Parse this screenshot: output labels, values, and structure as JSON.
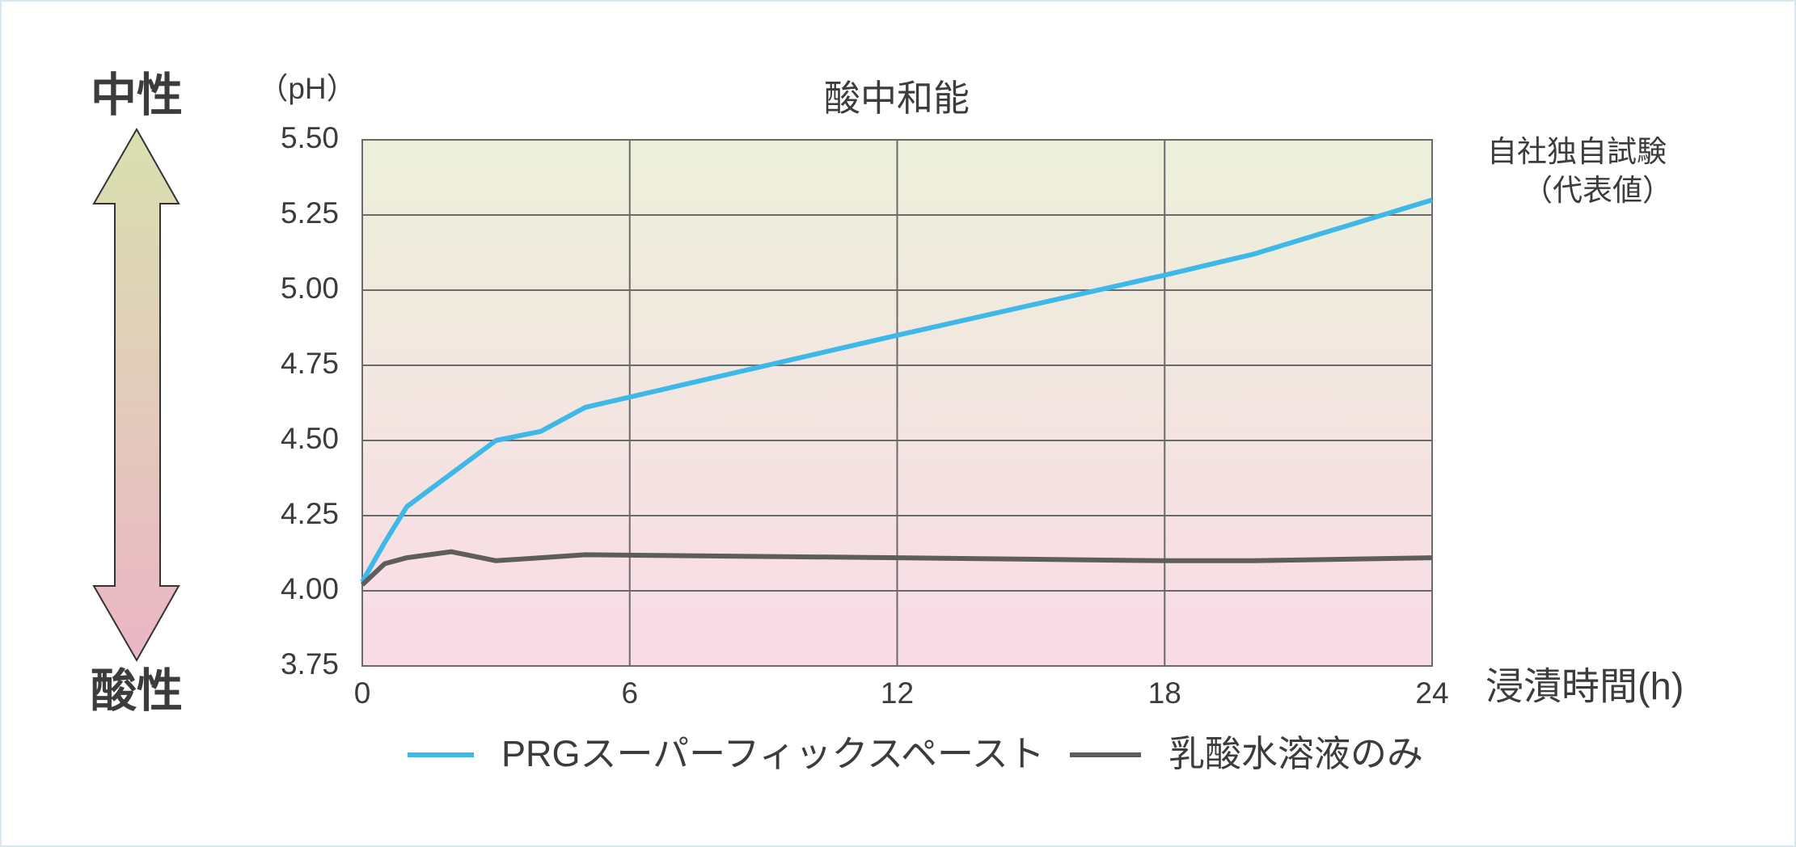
{
  "chart_data": {
    "type": "line",
    "title": "酸中和能",
    "y_unit_label": "（pH）",
    "x_label": "浸漬時間(h)",
    "note_line1": "自社独自試験",
    "note_line2": "（代表値）",
    "top_side_label": "中性",
    "bottom_side_label": "酸性",
    "x": [
      0,
      0.5,
      1,
      2,
      3,
      4,
      5,
      12,
      18,
      20,
      24
    ],
    "series": [
      {
        "name": "PRGスーパーフィックスペースト",
        "color": "#3db8e8",
        "values": [
          4.03,
          4.16,
          4.28,
          4.39,
          4.5,
          4.53,
          4.61,
          4.85,
          5.05,
          5.12,
          5.3
        ]
      },
      {
        "name": "乳酸水溶液のみ",
        "color": "#5d5d5d",
        "values": [
          4.02,
          4.09,
          4.11,
          4.13,
          4.1,
          4.11,
          4.12,
          4.11,
          4.1,
          4.1,
          4.11
        ]
      }
    ],
    "xlim": [
      0,
      24
    ],
    "xticks": [
      0,
      6,
      12,
      18,
      24
    ],
    "ylim": [
      3.75,
      5.5
    ],
    "yticks": [
      {
        "value": 3.75,
        "label": "3.75"
      },
      {
        "value": 4,
        "label": "4.00"
      },
      {
        "value": 4.25,
        "label": "4.25"
      },
      {
        "value": 4.5,
        "label": "4.50"
      },
      {
        "value": 4.75,
        "label": "4.75"
      },
      {
        "value": 5,
        "label": "5.00"
      },
      {
        "value": 5.25,
        "label": "5.25"
      },
      {
        "value": 5.5,
        "label": "5.50"
      }
    ],
    "grid": true,
    "legend": "bottom"
  }
}
